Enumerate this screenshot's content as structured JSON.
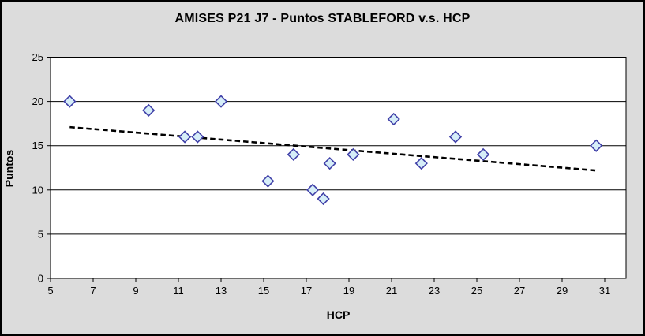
{
  "window": {
    "background_color": "#DCDCDC",
    "border_color": "#000000"
  },
  "chart_data": {
    "type": "scatter",
    "title": "AMISES P21 J7 - Puntos STABLEFORD v.s. HCP",
    "xlabel": "HCP",
    "ylabel": "Puntos",
    "xlim": [
      5,
      32
    ],
    "ylim": [
      0,
      25
    ],
    "x_ticks": [
      5,
      7,
      9,
      11,
      13,
      15,
      17,
      19,
      21,
      23,
      25,
      27,
      29,
      31
    ],
    "y_ticks": [
      0,
      5,
      10,
      15,
      20,
      25
    ],
    "grid": "horizontal-gridlines",
    "legend": "none",
    "series": [
      {
        "name": "Puntos STABLEFORD",
        "marker": "diamond",
        "points": [
          {
            "x": 5.9,
            "y": 20
          },
          {
            "x": 9.6,
            "y": 19
          },
          {
            "x": 11.3,
            "y": 16
          },
          {
            "x": 11.9,
            "y": 16
          },
          {
            "x": 13.0,
            "y": 20
          },
          {
            "x": 15.2,
            "y": 11
          },
          {
            "x": 16.4,
            "y": 14
          },
          {
            "x": 17.3,
            "y": 10
          },
          {
            "x": 17.8,
            "y": 9
          },
          {
            "x": 18.1,
            "y": 13
          },
          {
            "x": 19.2,
            "y": 14
          },
          {
            "x": 21.1,
            "y": 18
          },
          {
            "x": 22.4,
            "y": 13
          },
          {
            "x": 24.0,
            "y": 16
          },
          {
            "x": 25.3,
            "y": 14
          },
          {
            "x": 30.6,
            "y": 15
          }
        ]
      }
    ],
    "trendline": {
      "style": "dashed",
      "start": {
        "x": 5.9,
        "y": 17.1
      },
      "end": {
        "x": 30.6,
        "y": 12.2
      }
    },
    "colors": {
      "marker_fill": "#D6EEF8",
      "marker_stroke": "#4040A8",
      "trendline": "#000000",
      "plot_background": "#FFFFFF",
      "axis": "#000000",
      "gridline": "#000000",
      "text": "#000000"
    }
  }
}
